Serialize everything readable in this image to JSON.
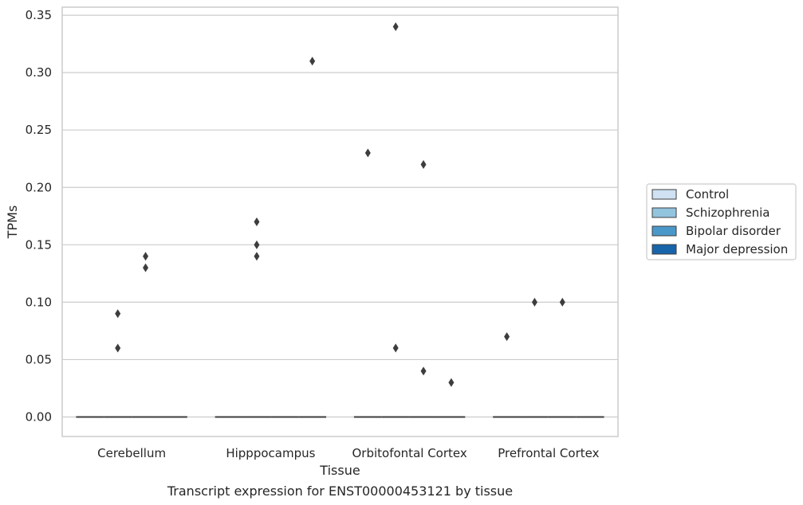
{
  "chart_data": {
    "type": "box",
    "xlabel": "Tissue",
    "ylabel": "TPMs",
    "caption": "Transcript expression for ENST00000453121 by tissue",
    "categories": [
      "Cerebellum",
      "Hipppocampus",
      "Orbitofontal Cortex",
      "Prefrontal Cortex"
    ],
    "ylim": [
      -0.017,
      0.357
    ],
    "yticks": [
      "0.00",
      "0.05",
      "0.10",
      "0.15",
      "0.20",
      "0.25",
      "0.30",
      "0.35"
    ],
    "ytick_values": [
      0,
      0.05,
      0.1,
      0.15,
      0.2,
      0.25,
      0.3,
      0.35
    ],
    "grid": true,
    "legend_position": "right",
    "series": [
      {
        "name": "Control",
        "color": "#cfe1f2",
        "medians": [
          0,
          0,
          0,
          0
        ],
        "outliers": [
          [],
          [],
          [
            0.23
          ],
          [
            0.07
          ]
        ]
      },
      {
        "name": "Schizophrenia",
        "color": "#93c4de",
        "medians": [
          0,
          0,
          0,
          0
        ],
        "outliers": [
          [
            0.06,
            0.09
          ],
          [
            0.14,
            0.15,
            0.17
          ],
          [
            0.06,
            0.34
          ],
          [
            0.1
          ]
        ]
      },
      {
        "name": "Bipolar disorder",
        "color": "#4a98c9",
        "medians": [
          0,
          0,
          0,
          0
        ],
        "outliers": [
          [
            0.13,
            0.14
          ],
          [],
          [
            0.04,
            0.22
          ],
          [
            0.1
          ]
        ]
      },
      {
        "name": "Major depression",
        "color": "#1764ab",
        "medians": [
          0,
          0,
          0,
          0
        ],
        "outliers": [
          [],
          [
            0.31
          ],
          [
            0.03
          ],
          []
        ]
      }
    ]
  }
}
